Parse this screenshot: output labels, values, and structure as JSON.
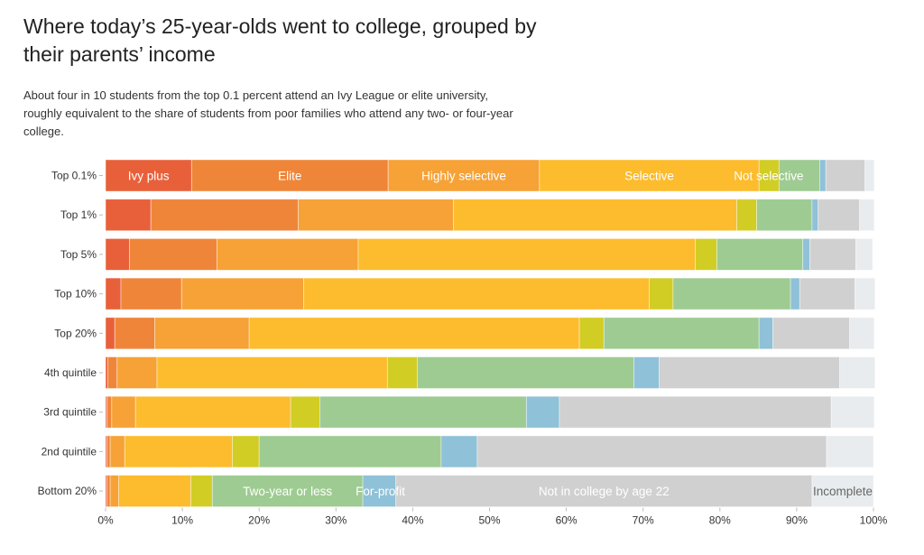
{
  "header": {
    "title": "Where today’s 25-year-olds went to college, grouped by their parents’ income",
    "subtitle": "About four in 10 students from the top 0.1 percent attend an Ivy League or elite university, roughly equivalent to the share of students from poor families who attend any two- or four-year college."
  },
  "chart_data": {
    "type": "bar",
    "orientation": "horizontal",
    "stacked": true,
    "title": "Where today’s 25-year-olds went to college, grouped by their parents’ income",
    "xlabel": "",
    "ylabel": "",
    "xlim": [
      0,
      100
    ],
    "x_ticks": [
      "0%",
      "10%",
      "20%",
      "30%",
      "40%",
      "50%",
      "60%",
      "70%",
      "80%",
      "90%",
      "100%"
    ],
    "grid": false,
    "legend": "inline labels on Top 0.1% and Bottom 20% bars",
    "categories": [
      "Top 0.1%",
      "Top 1%",
      "Top 5%",
      "Top 10%",
      "Top 20%",
      "4th quintile",
      "3rd quintile",
      "2nd quintile",
      "Bottom 20%"
    ],
    "series": [
      {
        "name": "Ivy plus",
        "color": "#e8603a",
        "values": [
          11.2,
          5.9,
          3.1,
          2.0,
          1.2,
          0.3,
          0.2,
          0.2,
          0.2
        ]
      },
      {
        "name": "Elite",
        "color": "#ef8539",
        "values": [
          25.6,
          19.2,
          11.4,
          7.9,
          5.2,
          1.2,
          0.6,
          0.4,
          0.4
        ]
      },
      {
        "name": "Highly selective",
        "color": "#f6a236",
        "values": [
          19.7,
          20.2,
          18.4,
          15.9,
          12.3,
          5.2,
          3.1,
          1.9,
          1.1
        ]
      },
      {
        "name": "Selective",
        "color": "#fcbc2e",
        "values": [
          28.6,
          36.9,
          43.9,
          45.0,
          43.0,
          30.0,
          20.2,
          14.0,
          9.4
        ]
      },
      {
        "name": "Not selective",
        "color": "#d2cd25",
        "values": [
          2.6,
          2.6,
          2.8,
          3.1,
          3.2,
          3.9,
          3.8,
          3.5,
          2.8
        ]
      },
      {
        "name": "Two-year or less",
        "color": "#9ecb91",
        "values": [
          5.3,
          7.2,
          11.2,
          15.3,
          20.2,
          28.2,
          26.9,
          23.7,
          19.6
        ]
      },
      {
        "name": "For-profit",
        "color": "#8fc1d8",
        "values": [
          0.8,
          0.8,
          0.9,
          1.2,
          1.8,
          3.3,
          4.3,
          4.7,
          4.3
        ]
      },
      {
        "name": "Not in college by age 22",
        "color": "#d0d0d0",
        "values": [
          5.1,
          5.4,
          6.0,
          7.2,
          10.0,
          23.5,
          35.4,
          45.5,
          54.2
        ]
      },
      {
        "name": "Incomplete",
        "color": "#e9ecee",
        "values": [
          1.2,
          1.9,
          2.2,
          2.6,
          3.2,
          4.6,
          5.6,
          6.1,
          8.0
        ]
      }
    ],
    "inline_labels": {
      "Top 0.1%": [
        "Ivy plus",
        "Elite",
        "Highly selective",
        "Selective",
        "Not selective"
      ],
      "Bottom 20%": [
        "Two-year or less",
        "For-profit",
        "Not in college by age 22",
        "Incomplete"
      ]
    }
  }
}
